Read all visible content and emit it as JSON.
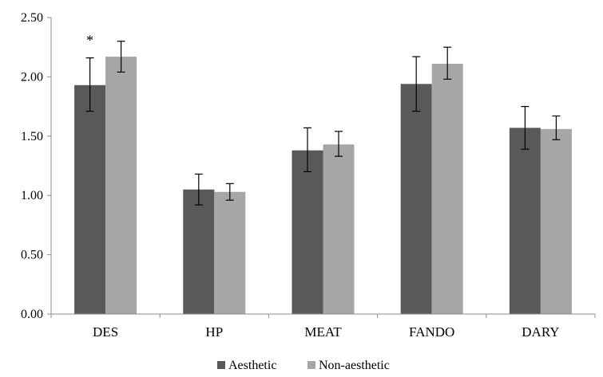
{
  "chart_data": {
    "type": "bar",
    "categories": [
      "DES",
      "HP",
      "MEAT",
      "FANDO",
      "DARY"
    ],
    "series": [
      {
        "name": "Aesthetic",
        "values": [
          1.93,
          1.05,
          1.38,
          1.94,
          1.57
        ],
        "error_low": [
          1.71,
          0.92,
          1.2,
          1.71,
          1.39
        ],
        "error_high": [
          2.16,
          1.18,
          1.57,
          2.17,
          1.75
        ],
        "color": "#595959"
      },
      {
        "name": "Non-aesthetic",
        "values": [
          2.17,
          1.03,
          1.43,
          2.11,
          1.56
        ],
        "error_low": [
          2.04,
          0.96,
          1.33,
          1.98,
          1.47
        ],
        "error_high": [
          2.3,
          1.1,
          1.54,
          2.25,
          1.67
        ],
        "color": "#a6a6a6"
      }
    ],
    "ylim": [
      0,
      2.5
    ],
    "yticks": [
      "0.00",
      "0.50",
      "1.00",
      "1.50",
      "2.00",
      "2.50"
    ],
    "grid": false,
    "legend": "bottom",
    "annotations": [
      {
        "text": "*",
        "category": "DES"
      }
    ],
    "title": "",
    "xlabel": "",
    "ylabel": ""
  }
}
